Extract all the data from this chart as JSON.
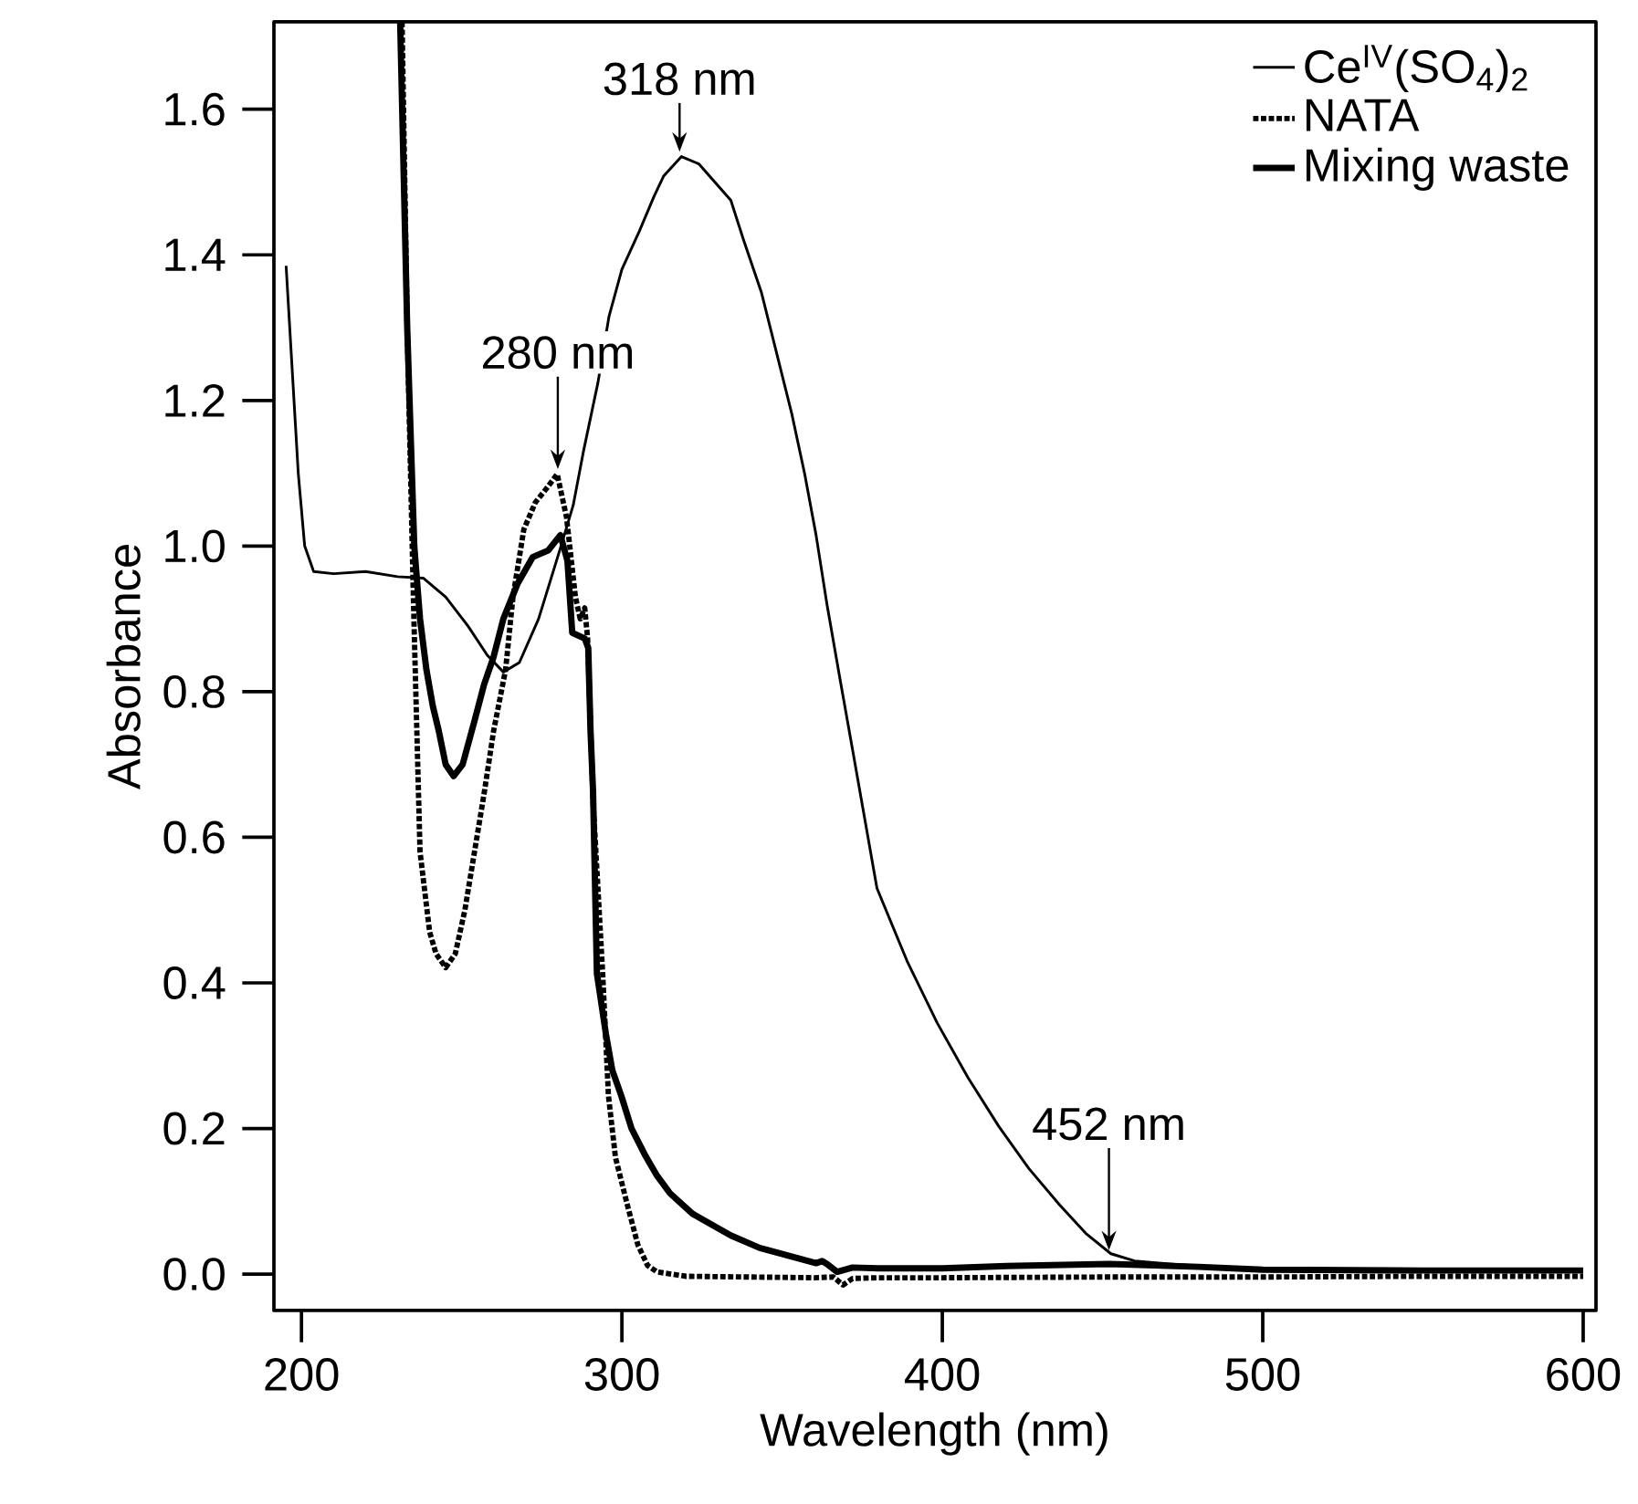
{
  "chart_data": {
    "type": "line",
    "xlabel": "Wavelength (nm)",
    "ylabel": "Absorbance",
    "xlim": [
      191.4,
      604
    ],
    "ylim": [
      -0.05,
      1.72
    ],
    "xticks": [
      200,
      300,
      400,
      500,
      600
    ],
    "yticks": [
      {
        "value": 0,
        "label": "0.0"
      },
      0.2,
      0.4,
      0.6,
      0.8,
      {
        "value": 1,
        "label": "1.0"
      },
      1.2,
      1.4,
      1.6
    ],
    "legend": "top right",
    "grid": false,
    "marker": "none",
    "annotations": [
      {
        "text": "318 nm",
        "x": 318,
        "y": 1.535
      },
      {
        "text": "280 nm",
        "x": 280,
        "y": 1.099
      },
      {
        "text": "452 nm",
        "x": 452,
        "y": 0.026
      }
    ],
    "series": [
      {
        "name": "Ce$^{IV}$(SO$_{4}$)$_{2}$",
        "color": "#000000",
        "line_style": "solid",
        "x": [
          195.2,
          197,
          199,
          201,
          203.8,
          210,
          220,
          230,
          238,
          245,
          252,
          258,
          263,
          268,
          274,
          281,
          284.8,
          288,
          292.5,
          296,
          300,
          305.5,
          310,
          313,
          318.6,
          324,
          329,
          334,
          338,
          343.5,
          348,
          353,
          357,
          360.6,
          364,
          368.2,
          372,
          379.6,
          389,
          398.4,
          408,
          417.6,
          427,
          436.6,
          445,
          452.6,
          460,
          470.8,
          480,
          490,
          500,
          550,
          600
        ],
        "values": [
          1.385,
          1.25,
          1.1,
          1.0,
          0.965,
          0.962,
          0.965,
          0.958,
          0.956,
          0.93,
          0.89,
          0.85,
          0.827,
          0.84,
          0.9,
          1.0,
          1.056,
          1.13,
          1.224,
          1.316,
          1.38,
          1.433,
          1.48,
          1.508,
          1.535,
          1.525,
          1.5,
          1.475,
          1.42,
          1.349,
          1.27,
          1.182,
          1.1,
          1.015,
          0.92,
          0.814,
          0.72,
          0.53,
          0.43,
          0.345,
          0.27,
          0.203,
          0.145,
          0.095,
          0.055,
          0.028,
          0.018,
          0.014,
          0.011,
          0.009,
          0.008,
          0.006,
          0.005
        ]
      },
      {
        "name": "NATA",
        "color": "#000000",
        "line_style": "dotted",
        "x": [
          231.4,
          233,
          235,
          237,
          240,
          242,
          245,
          248,
          251,
          254,
          257,
          260,
          263.7,
          266,
          269.4,
          273,
          277,
          279.8,
          282.7,
          285.5,
          287,
          288.4,
          289.3,
          291,
          294,
          295.8,
          298,
          301.7,
          305,
          308,
          311,
          320,
          340,
          360,
          366,
          369,
          372,
          380,
          400,
          450,
          500,
          550,
          600
        ],
        "values": [
          1.72,
          1.3,
          0.915,
          0.58,
          0.47,
          0.44,
          0.421,
          0.44,
          0.5,
          0.58,
          0.66,
          0.747,
          0.83,
          0.93,
          1.023,
          1.06,
          1.082,
          1.099,
          1.04,
          0.93,
          0.9,
          0.915,
          0.873,
          0.65,
          0.413,
          0.245,
          0.16,
          0.095,
          0.04,
          0.012,
          0.003,
          -0.003,
          -0.004,
          -0.005,
          -0.004,
          -0.015,
          -0.006,
          -0.005,
          -0.005,
          -0.004,
          -0.004,
          -0.003,
          -0.003
        ]
      },
      {
        "name": "Mixing waste",
        "color": "#000000",
        "line_style": "solid",
        "x": [
          230.8,
          233,
          235.2,
          237,
          239,
          241,
          242.8,
          245,
          247.5,
          250.3,
          254,
          257,
          259.9,
          263,
          267.4,
          272.2,
          277,
          280.8,
          283,
          284.5,
          288.4,
          289.5,
          290.2,
          291,
          292.2,
          295,
          297,
          299.8,
          303,
          307.4,
          311,
          315,
          322,
          334,
          343,
          353,
          360.6,
          362.5,
          364,
          367.2,
          372,
          380,
          400,
          420,
          452,
          480,
          500,
          550,
          600
        ],
        "values": [
          1.72,
          1.3,
          1.0,
          0.9,
          0.83,
          0.78,
          0.747,
          0.7,
          0.684,
          0.7,
          0.76,
          0.81,
          0.847,
          0.9,
          0.948,
          0.985,
          0.994,
          1.015,
          0.98,
          0.881,
          0.873,
          0.86,
          0.747,
          0.663,
          0.413,
          0.33,
          0.28,
          0.245,
          0.2,
          0.162,
          0.135,
          0.111,
          0.083,
          0.053,
          0.036,
          0.024,
          0.015,
          0.018,
          0.014,
          0.003,
          0.009,
          0.008,
          0.008,
          0.011,
          0.014,
          0.01,
          0.006,
          0.005,
          0.005
        ]
      }
    ]
  }
}
